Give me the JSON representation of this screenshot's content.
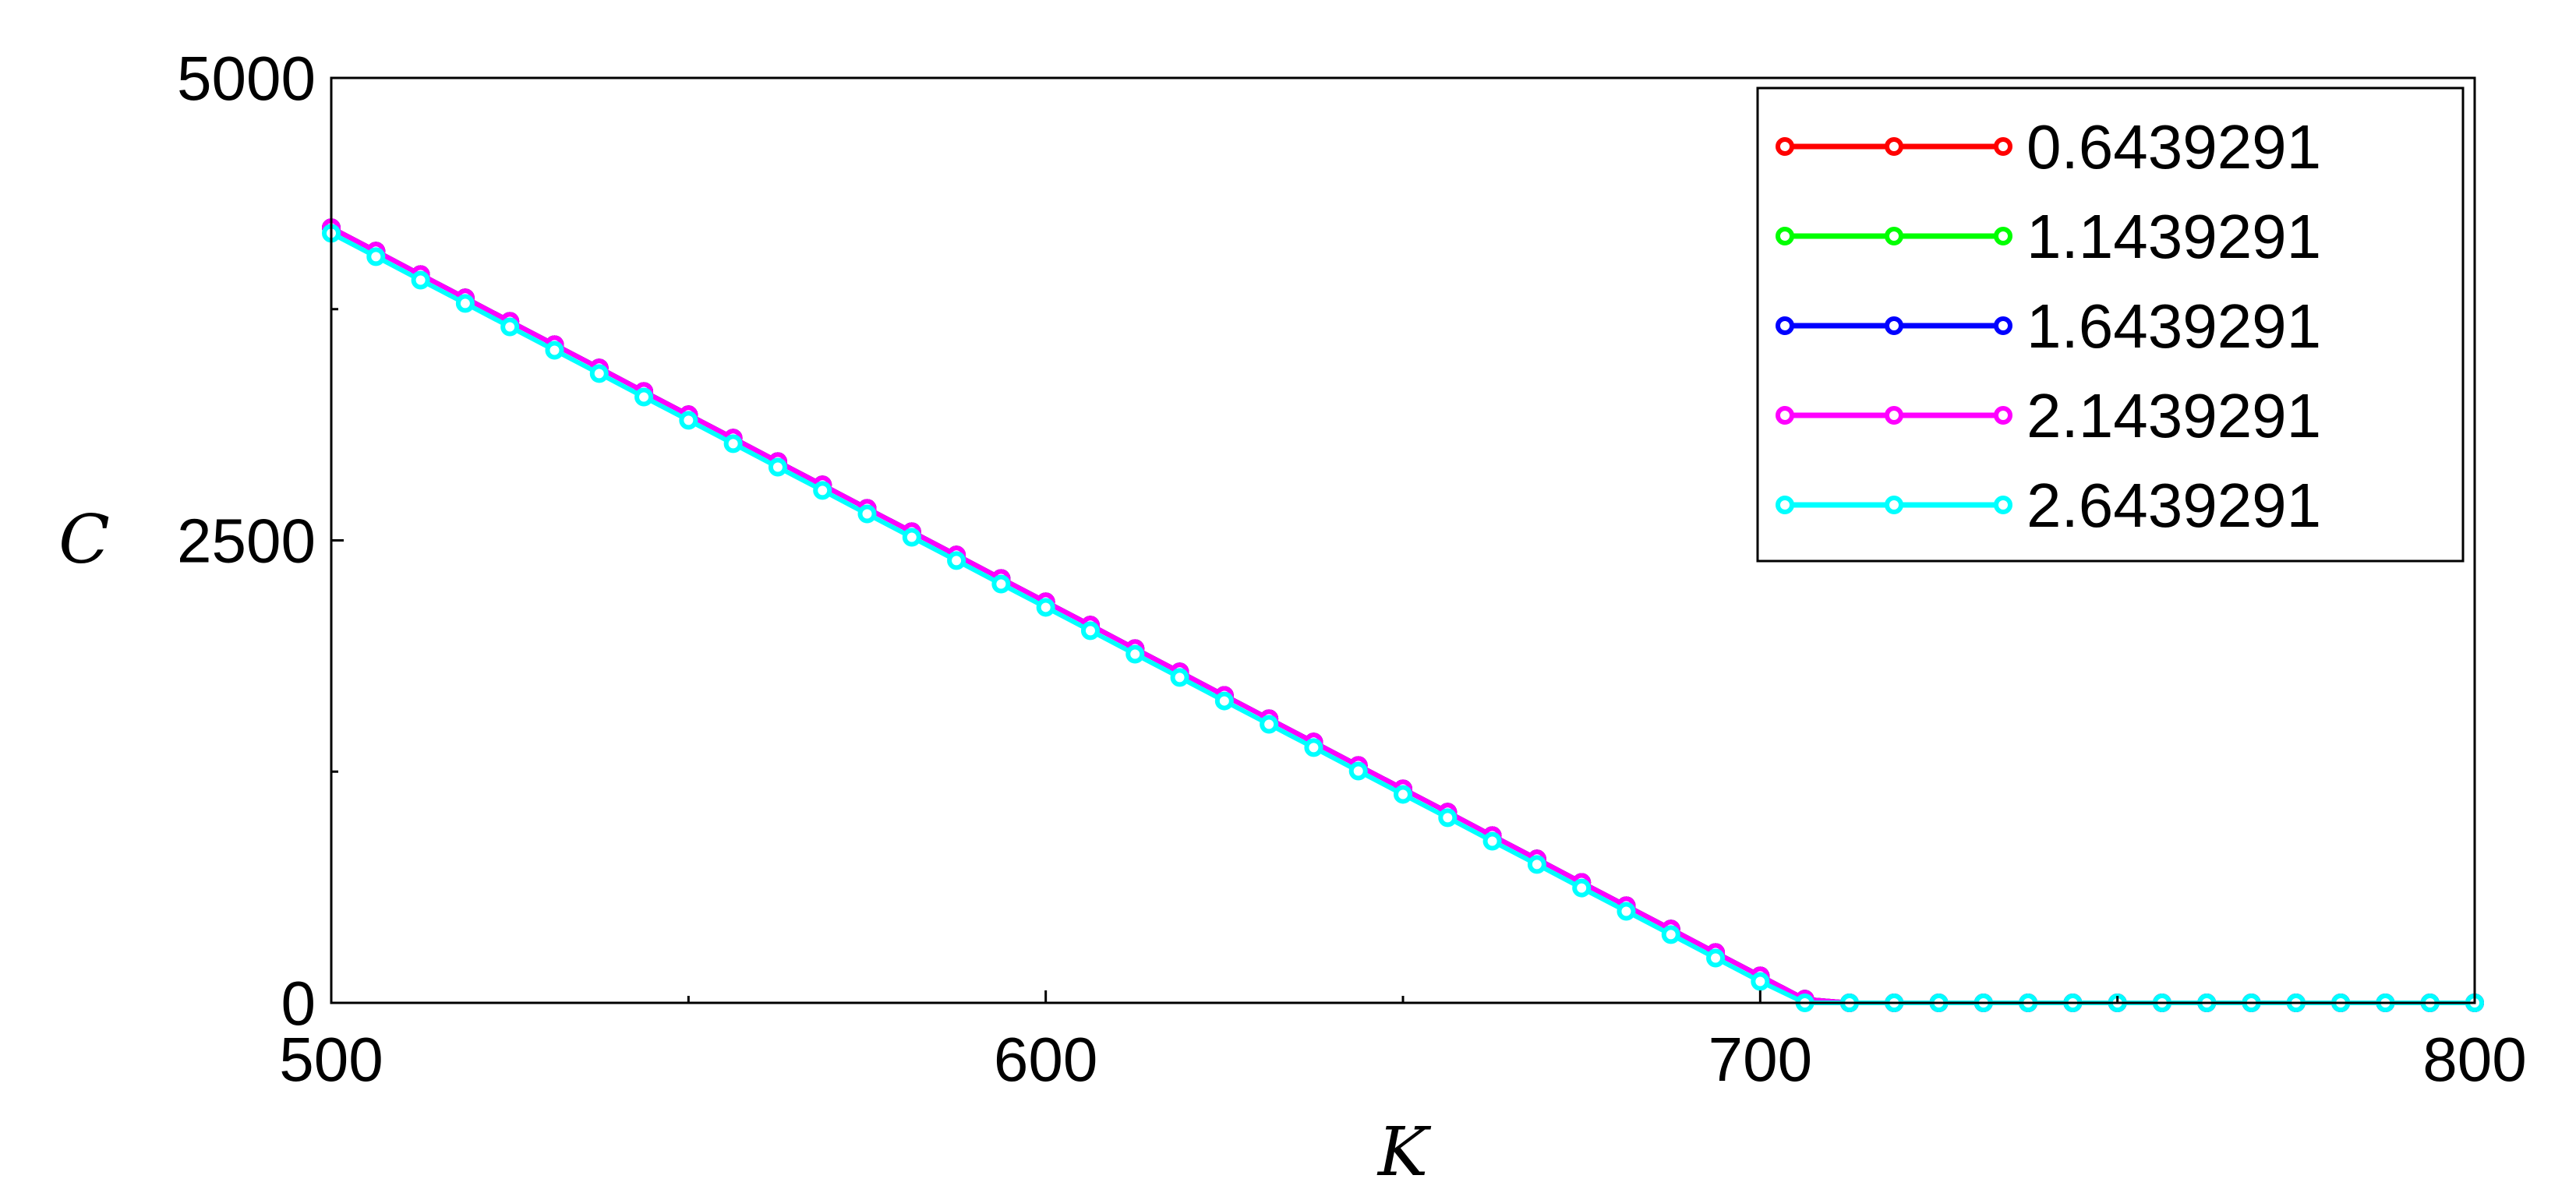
{
  "chart_data": {
    "type": "line",
    "title": "",
    "xlabel": "K",
    "ylabel": "C",
    "xlim": [
      500,
      800
    ],
    "ylim": [
      0,
      5000
    ],
    "x_ticks": [
      "500",
      "600",
      "700",
      "800"
    ],
    "y_ticks": [
      "0",
      "2500",
      "5000"
    ],
    "x_tick_values": [
      500,
      600,
      700,
      800
    ],
    "y_tick_values": [
      0,
      2500,
      5000
    ],
    "x_minor_ticks": [
      550,
      650,
      750
    ],
    "y_minor_ticks": [
      1250,
      3750
    ],
    "grid": false,
    "legend_position": "top-right",
    "x": [
      500,
      506.25,
      512.5,
      518.75,
      525,
      531.25,
      537.5,
      543.75,
      550,
      556.25,
      562.5,
      568.75,
      575,
      581.25,
      587.5,
      593.75,
      600,
      606.25,
      612.5,
      618.75,
      625,
      631.25,
      637.5,
      643.75,
      650,
      656.25,
      662.5,
      668.75,
      675,
      681.25,
      687.5,
      693.75,
      700,
      706.25,
      712.5,
      718.75,
      725,
      731.25,
      737.5,
      743.75,
      750,
      756.25,
      762.5,
      768.75,
      775,
      781.25,
      787.5,
      793.75,
      800
    ],
    "series": [
      {
        "name": "0.6439291",
        "color": "#ff0000",
        "values": [
          4190,
          4064,
          3937,
          3811,
          3684,
          3558,
          3432,
          3305,
          3179,
          3053,
          2926,
          2800,
          2673,
          2547,
          2421,
          2294,
          2168,
          2042,
          1915,
          1789,
          1662,
          1536,
          1410,
          1283,
          1157,
          1031,
          904,
          778,
          651,
          525,
          399,
          272,
          146,
          20,
          0,
          0,
          0,
          0,
          0,
          0,
          0,
          0,
          0,
          0,
          0,
          0,
          0,
          0,
          0
        ]
      },
      {
        "name": "1.1439291",
        "color": "#00ff00",
        "values": [
          4190,
          4064,
          3937,
          3811,
          3684,
          3558,
          3432,
          3305,
          3179,
          3053,
          2926,
          2800,
          2673,
          2547,
          2421,
          2294,
          2168,
          2042,
          1915,
          1789,
          1662,
          1536,
          1410,
          1283,
          1157,
          1031,
          904,
          778,
          651,
          525,
          399,
          272,
          146,
          20,
          0,
          0,
          0,
          0,
          0,
          0,
          0,
          0,
          0,
          0,
          0,
          0,
          0,
          0,
          0
        ]
      },
      {
        "name": "1.6439291",
        "color": "#0000ff",
        "values": [
          4190,
          4064,
          3937,
          3811,
          3684,
          3558,
          3432,
          3305,
          3179,
          3053,
          2926,
          2800,
          2673,
          2547,
          2421,
          2294,
          2168,
          2042,
          1915,
          1789,
          1662,
          1536,
          1410,
          1283,
          1157,
          1031,
          904,
          778,
          651,
          525,
          399,
          272,
          146,
          20,
          0,
          0,
          0,
          0,
          0,
          0,
          0,
          0,
          0,
          0,
          0,
          0,
          0,
          0,
          0
        ]
      },
      {
        "name": "2.1439291",
        "color": "#ff00ff",
        "values": [
          4190,
          4064,
          3937,
          3811,
          3684,
          3558,
          3432,
          3305,
          3179,
          3053,
          2926,
          2800,
          2673,
          2547,
          2421,
          2294,
          2168,
          2042,
          1915,
          1789,
          1662,
          1536,
          1410,
          1283,
          1157,
          1031,
          904,
          778,
          651,
          525,
          399,
          272,
          146,
          20,
          0,
          0,
          0,
          0,
          0,
          0,
          0,
          0,
          0,
          0,
          0,
          0,
          0,
          0,
          0
        ]
      },
      {
        "name": "2.6439291",
        "color": "#00ffff",
        "values": [
          4160,
          4034,
          3907,
          3781,
          3654,
          3528,
          3402,
          3275,
          3149,
          3023,
          2896,
          2770,
          2643,
          2517,
          2391,
          2264,
          2138,
          2012,
          1885,
          1759,
          1632,
          1506,
          1380,
          1253,
          1127,
          1001,
          874,
          748,
          621,
          495,
          369,
          242,
          116,
          0,
          0,
          0,
          0,
          0,
          0,
          0,
          0,
          0,
          0,
          0,
          0,
          0,
          0,
          0,
          0
        ]
      }
    ]
  }
}
